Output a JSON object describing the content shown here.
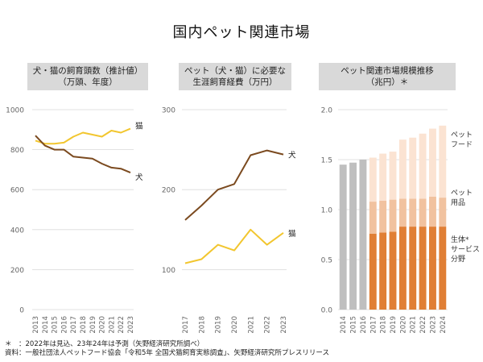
{
  "page": {
    "title": "国内ペット関連市場"
  },
  "chart_data": [
    {
      "type": "line",
      "title": "犬・猫の飼育頭数（推計値）",
      "subtitle": "（万頭、年度）",
      "x": [
        "2013",
        "2014",
        "2015",
        "2016",
        "2017",
        "2018",
        "2019",
        "2020",
        "2021",
        "2022",
        "2023"
      ],
      "ylim": [
        0,
        1000
      ],
      "yticks": [
        "0",
        "200",
        "400",
        "600",
        "800",
        "1000"
      ],
      "grid": true,
      "series": [
        {
          "name": "猫",
          "color": "#f2c62f",
          "values": [
            845,
            830,
            830,
            835,
            865,
            885,
            875,
            865,
            895,
            885,
            905
          ]
        },
        {
          "name": "犬",
          "color": "#7b4a1f",
          "values": [
            870,
            820,
            800,
            800,
            765,
            760,
            755,
            730,
            710,
            705,
            685
          ]
        }
      ]
    },
    {
      "type": "line",
      "title": "ペット（犬・猫）に必要な",
      "subtitle": "生涯飼育経費（万円）",
      "x": [
        "2017",
        "2018",
        "2019",
        "2020",
        "2021",
        "2022",
        "2023"
      ],
      "ylim": [
        50,
        300
      ],
      "yticks": [
        "100",
        "200",
        "300"
      ],
      "grid": true,
      "series": [
        {
          "name": "犬",
          "color": "#7b4a1f",
          "values": [
            162,
            180,
            200,
            207,
            243,
            249,
            244
          ]
        },
        {
          "name": "猫",
          "color": "#f2c62f",
          "values": [
            108,
            113,
            131,
            124,
            150,
            131,
            146
          ]
        }
      ]
    },
    {
      "type": "bar",
      "title": "ペット関連市場規模推移",
      "subtitle": "（兆円）＊",
      "categories": [
        "2014",
        "2015",
        "2016",
        "2017",
        "2018",
        "2019",
        "2020",
        "2021",
        "2022",
        "2023",
        "2024"
      ],
      "ylim": [
        0,
        2.0
      ],
      "yticks": [
        "0.0",
        "0.5",
        "1.0",
        "1.5",
        "2.0"
      ],
      "grid": true,
      "stacked": true,
      "total_color": "#bfbfbf",
      "totals_2014_2016": [
        1.45,
        1.47,
        1.5
      ],
      "series": [
        {
          "name": "生体・サービス分野",
          "label_lines": [
            "生体*",
            "サービス",
            "分野"
          ],
          "color": "#e07f35",
          "values": [
            null,
            null,
            null,
            0.76,
            0.77,
            0.78,
            0.83,
            0.83,
            0.83,
            0.83,
            0.83
          ]
        },
        {
          "name": "ペット用品",
          "label_lines": [
            "ペット",
            "用品"
          ],
          "color": "#f1c29f",
          "values": [
            null,
            null,
            null,
            0.32,
            0.32,
            0.32,
            0.28,
            0.28,
            0.28,
            0.3,
            0.29
          ]
        },
        {
          "name": "ペットフード",
          "label_lines": [
            "ペット",
            "フード"
          ],
          "color": "#fbe3d2",
          "values": [
            null,
            null,
            null,
            0.44,
            0.47,
            0.48,
            0.59,
            0.61,
            0.65,
            0.68,
            0.72
          ]
        }
      ]
    }
  ],
  "footnotes": {
    "line1": "＊　：2022年は見込、23年24年は予測（矢野経済研究所調べ）",
    "line2": "資料：一般社団法人ペットフード協会「令和5年 全国犬猫飼育実態調査」、矢野経済研究所プレスリリース"
  }
}
